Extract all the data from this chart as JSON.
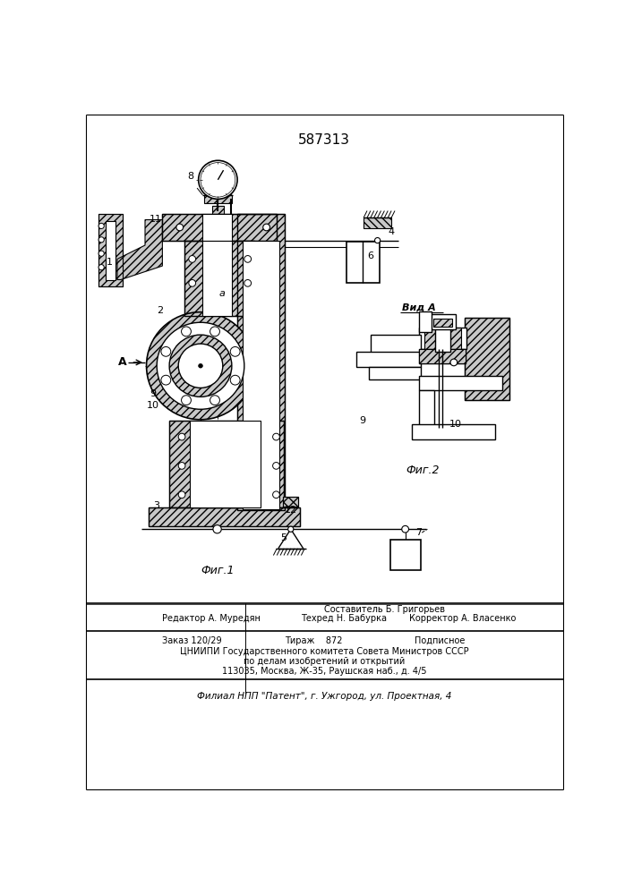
{
  "title": "587313",
  "fig_label1": "Фиг.1",
  "fig_label2": "Фиг.2",
  "view_label": "Вид А",
  "background": "#ffffff",
  "footer_lines": [
    "Составитель Б. Григорьев",
    "Редактор А. Муредян",
    "Техред Н. Бабурка",
    "Корректор А. Власенко",
    "Заказ 120/29",
    "Тираж    872",
    "Подписное",
    "ЦНИИПИ Государственного комитета Совета Министров СССР",
    "по делам изобретений и открытий",
    "113035, Москва, Ж-35, Раушская наб., д. 4/5",
    "Филиал НПП \"Патент\", г. Ужгород, ул. Проектная, 4"
  ]
}
